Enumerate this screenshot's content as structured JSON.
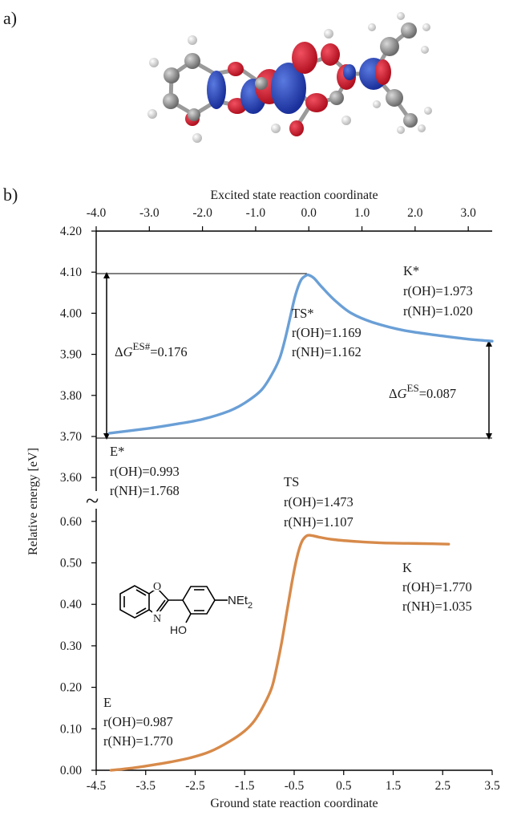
{
  "panels": {
    "a": "a)",
    "b": "b)"
  },
  "chart_data": {
    "type": "line",
    "x_top": {
      "label": "Excited state reaction coordinate",
      "ticks": [
        -4.0,
        -3.0,
        -2.0,
        -1.0,
        0.0,
        1.0,
        2.0,
        3.0
      ],
      "tick_labels": [
        "-4.0",
        "-3.0",
        "-2.0",
        "-1.0",
        "0.0",
        "1.0",
        "2.0",
        "3.0"
      ],
      "range": [
        -4.0,
        3.45
      ]
    },
    "x_bottom": {
      "label": "Ground state reaction coordinate",
      "ticks": [
        -4.5,
        -3.5,
        -2.5,
        -1.5,
        -0.5,
        0.5,
        1.5,
        2.5,
        3.5
      ],
      "tick_labels": [
        "-4.5",
        "-3.5",
        "-2.5",
        "-1.5",
        "-0.5",
        "0.5",
        "1.5",
        "2.5",
        "3.5"
      ],
      "range": [
        -4.5,
        3.5
      ]
    },
    "y": {
      "label": "Relative energy [eV]",
      "upper_ticks": [
        3.6,
        3.7,
        3.8,
        3.9,
        4.0,
        4.1,
        4.2
      ],
      "upper_tick_labels": [
        "3.60",
        "3.70",
        "3.80",
        "3.90",
        "4.00",
        "4.10",
        "4.20"
      ],
      "lower_ticks": [
        0.0,
        0.1,
        0.2,
        0.3,
        0.4,
        0.5,
        0.6
      ],
      "lower_tick_labels": [
        "0.00",
        "0.10",
        "0.20",
        "0.30",
        "0.40",
        "0.50",
        "0.60"
      ],
      "break_symbol": "~"
    },
    "series": [
      {
        "state": "excited",
        "axis": "top",
        "color": "#6a9fd6",
        "x": [
          -3.75,
          -3.0,
          -2.5,
          -2.0,
          -1.5,
          -1.2,
          -0.9,
          -0.7,
          -0.55,
          -0.45,
          -0.35,
          -0.25,
          -0.15,
          -0.05,
          0.0,
          0.1,
          0.25,
          0.5,
          0.8,
          1.2,
          1.8,
          2.5,
          3.0,
          3.45
        ],
        "y": [
          3.708,
          3.72,
          3.73,
          3.742,
          3.762,
          3.782,
          3.812,
          3.85,
          3.89,
          3.935,
          3.99,
          4.045,
          4.08,
          4.092,
          4.093,
          4.085,
          4.063,
          4.03,
          4.0,
          3.978,
          3.958,
          3.945,
          3.937,
          3.932
        ]
      },
      {
        "state": "ground",
        "axis": "bottom",
        "color": "#d78a4a",
        "x": [
          -4.2,
          -3.8,
          -3.4,
          -3.0,
          -2.6,
          -2.2,
          -1.8,
          -1.5,
          -1.3,
          -1.1,
          -0.95,
          -0.85,
          -0.75,
          -0.65,
          -0.55,
          -0.45,
          -0.35,
          -0.25,
          -0.15,
          0.0,
          0.3,
          0.8,
          1.3,
          1.8,
          2.3,
          2.62
        ],
        "y": [
          0.0,
          0.005,
          0.012,
          0.02,
          0.03,
          0.045,
          0.07,
          0.095,
          0.12,
          0.16,
          0.2,
          0.25,
          0.31,
          0.38,
          0.45,
          0.51,
          0.55,
          0.565,
          0.566,
          0.562,
          0.556,
          0.551,
          0.548,
          0.547,
          0.546,
          0.545
        ]
      }
    ],
    "annotations": {
      "k_star": {
        "title": "K*",
        "oh": "r(OH)=1.973",
        "nh": "r(NH)=1.020"
      },
      "ts_star": {
        "title": "TS*",
        "oh": "r(OH)=1.169",
        "nh": "r(NH)=1.162"
      },
      "e_star": {
        "title": "E*",
        "oh": "r(OH)=0.993",
        "nh": "r(NH)=1.768"
      },
      "ts": {
        "title": "TS",
        "oh": "r(OH)=1.473",
        "nh": "r(NH)=1.107"
      },
      "k": {
        "title": "K",
        "oh": "r(OH)=1.770",
        "nh": "r(NH)=1.035"
      },
      "e": {
        "title": "E",
        "oh": "r(OH)=0.987",
        "nh": "r(NH)=1.770"
      },
      "dG_es_barrier": {
        "delta": "Δ",
        "G": "G",
        "sup": "ES#",
        "value": "=0.176"
      },
      "dG_es": {
        "delta": "Δ",
        "G": "G",
        "sup": "ES",
        "value": "=0.087"
      }
    },
    "molecule_labels": {
      "substituent": "NEt",
      "substituent_sub": "2",
      "hydroxyl": "HO",
      "ring_o": "O",
      "ring_n": "N"
    }
  }
}
